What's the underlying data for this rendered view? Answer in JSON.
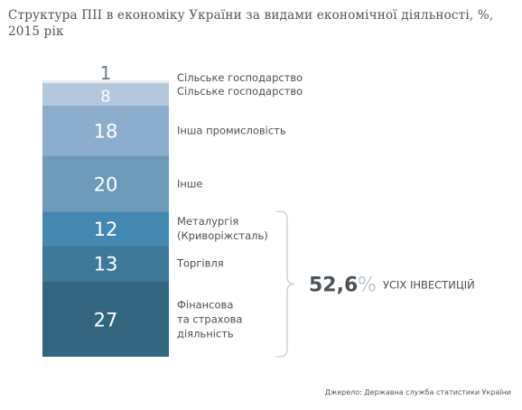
{
  "title": "Структура ПІІ в економіку України за видами економічної діяльності, %, 2015 рік",
  "chart_data": {
    "type": "bar",
    "subtype": "stacked-100",
    "title": "Структура ПІІ в економіку України за видами економічної діяльності, %, 2015 рік",
    "segments": [
      {
        "value": 1,
        "label_value": "1",
        "name": "Сільське господарство",
        "color": "#e6ebf0"
      },
      {
        "value": 8,
        "label_value": "8",
        "name": "Сільське господарство",
        "color": "#b3c8dc"
      },
      {
        "value": 18,
        "label_value": "18",
        "name": "Інша промисловість",
        "color": "#8cadcb"
      },
      {
        "value": 20,
        "label_value": "20",
        "name": "Інше",
        "color": "#6d9ab9"
      },
      {
        "value": 12,
        "label_value": "12",
        "name": "Металургія (Криворіжсталь)",
        "color": "#4288b1"
      },
      {
        "value": 13,
        "label_value": "13",
        "name": "Торгівля",
        "color": "#3f7999"
      },
      {
        "value": 27,
        "label_value": "27",
        "name": "Фінансова та страхова діяльність",
        "color": "#34657f"
      }
    ],
    "annotation": {
      "value": "52,6",
      "unit": "%",
      "text": "УСІХ ІНВЕСТИЦІЙ",
      "covers": [
        "Металургія (Криворіжсталь)",
        "Торгівля",
        "Фінансова та страхова діяльність"
      ]
    },
    "label_color_dark": "#6b7b86",
    "label_color_light": "#ffffff",
    "bracket_color": "#c9d6e0",
    "accent_color": "#4b5358",
    "unit_color": "#b8c6d2"
  },
  "source": "Джерело: Державна служба статистики України"
}
